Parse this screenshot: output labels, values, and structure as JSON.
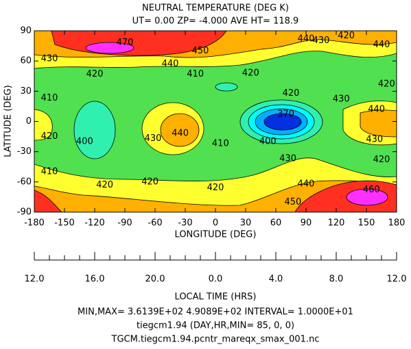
{
  "chart_data": {
    "type": "contour",
    "title": "NEUTRAL TEMPERATURE (DEG K)",
    "subtitle": "UT= 0.00 ZP= -4.000 AVE HT= 118.9",
    "x_label": "LONGITUDE (DEG)",
    "y_label": "LATITUDE (DEG)",
    "xlim": [
      -180,
      180
    ],
    "xticks": [
      -180,
      -150,
      -120,
      -90,
      -60,
      -30,
      0,
      30,
      60,
      90,
      120,
      150,
      180
    ],
    "ylim": [
      -90,
      90
    ],
    "yticks": [
      -90,
      -60,
      -30,
      0,
      30,
      60,
      90
    ],
    "lt_label": "LOCAL TIME (HRS)",
    "lt_lim": [
      12,
      36
    ],
    "lt_ticks": [
      {
        "value": 12,
        "label": "12.0"
      },
      {
        "value": 16,
        "label": "16.0"
      },
      {
        "value": 20,
        "label": "20.0"
      },
      {
        "value": 24,
        "label": "0.0"
      },
      {
        "value": 28,
        "label": "4.0"
      },
      {
        "value": 32,
        "label": "8.0"
      },
      {
        "value": 36,
        "label": "12.0"
      }
    ],
    "lt_minor_ticks": [
      13,
      14,
      15,
      17,
      18,
      19,
      21,
      22,
      23,
      25,
      26,
      27,
      29,
      30,
      31,
      33,
      34,
      35
    ],
    "contour_labels": [
      {
        "value": 470,
        "x": -90,
        "y": 78
      },
      {
        "value": 450,
        "x": -15,
        "y": 70
      },
      {
        "value": 440,
        "x": -45,
        "y": 57
      },
      {
        "value": 440,
        "x": 90,
        "y": 82
      },
      {
        "value": 430,
        "x": 105,
        "y": 80
      },
      {
        "value": 420,
        "x": 130,
        "y": 85
      },
      {
        "value": 440,
        "x": 165,
        "y": 76
      },
      {
        "value": 430,
        "x": -165,
        "y": 62
      },
      {
        "value": 420,
        "x": -120,
        "y": 47
      },
      {
        "value": 410,
        "x": -20,
        "y": 47
      },
      {
        "value": 420,
        "x": 35,
        "y": 48
      },
      {
        "value": 420,
        "x": 75,
        "y": 28
      },
      {
        "value": 430,
        "x": 125,
        "y": 22
      },
      {
        "value": 420,
        "x": 170,
        "y": 37
      },
      {
        "value": 410,
        "x": -165,
        "y": 23
      },
      {
        "value": 420,
        "x": -165,
        "y": -15
      },
      {
        "value": 400,
        "x": -130,
        "y": -20
      },
      {
        "value": 430,
        "x": -62,
        "y": -17
      },
      {
        "value": 440,
        "x": -35,
        "y": -12
      },
      {
        "value": 410,
        "x": 5,
        "y": -22
      },
      {
        "value": 400,
        "x": 52,
        "y": -20
      },
      {
        "value": 370,
        "x": 70,
        "y": 7
      },
      {
        "value": 440,
        "x": 160,
        "y": 12
      },
      {
        "value": 430,
        "x": 158,
        "y": -18
      },
      {
        "value": 420,
        "x": 165,
        "y": -38
      },
      {
        "value": 430,
        "x": 72,
        "y": -37
      },
      {
        "value": 410,
        "x": -165,
        "y": -50
      },
      {
        "value": 420,
        "x": -110,
        "y": -63
      },
      {
        "value": 420,
        "x": -65,
        "y": -60
      },
      {
        "value": 420,
        "x": 0,
        "y": -66
      },
      {
        "value": 440,
        "x": 90,
        "y": -62
      },
      {
        "value": 450,
        "x": 77,
        "y": -80
      },
      {
        "value": 460,
        "x": 155,
        "y": -68
      }
    ],
    "footer": [
      "MIN,MAX=  3.6139E+02  4.9089E+02 INTERVAL=  1.0000E+01",
      "tiegcm1.94 (DAY,HR,MIN= 85, 0, 0)",
      "TGCM.tiegcm1.94.pcntr_mareqx_smax_001.nc"
    ]
  }
}
